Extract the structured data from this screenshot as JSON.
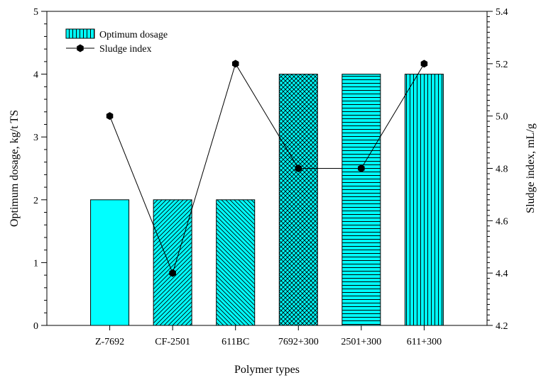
{
  "chart_data": {
    "type": "bar",
    "categories": [
      "Z-7692",
      "CF-2501",
      "611BC",
      "7692+300",
      "2501+300",
      "611+300"
    ],
    "series": [
      {
        "name": "Optimum dosage",
        "type": "bar",
        "axis": "left",
        "values": [
          2,
          2,
          2,
          4,
          4,
          4
        ],
        "color": "#00ffff",
        "patterns": [
          "solid",
          "diag-up",
          "diag-down",
          "crosshatch",
          "horizontal",
          "vertical"
        ]
      },
      {
        "name": "Sludge index",
        "type": "line",
        "axis": "right",
        "values": [
          5.0,
          4.4,
          5.2,
          4.8,
          4.8,
          5.2
        ],
        "color": "#000000",
        "marker": "hexagon"
      }
    ],
    "xlabel": "Polymer types",
    "ylabel": "Optimum dosage, kg/t TS",
    "y2label": "Sludge index, mL/g",
    "ylim": [
      0,
      5
    ],
    "y2lim": [
      4.2,
      5.4
    ],
    "yticks": [
      0,
      1,
      2,
      3,
      4,
      5
    ],
    "y2ticks": [
      "4.2",
      "4.4",
      "4.6",
      "4.8",
      "5.0",
      "5.2",
      "5.4"
    ],
    "grid": false,
    "legend_position": "top-left"
  }
}
